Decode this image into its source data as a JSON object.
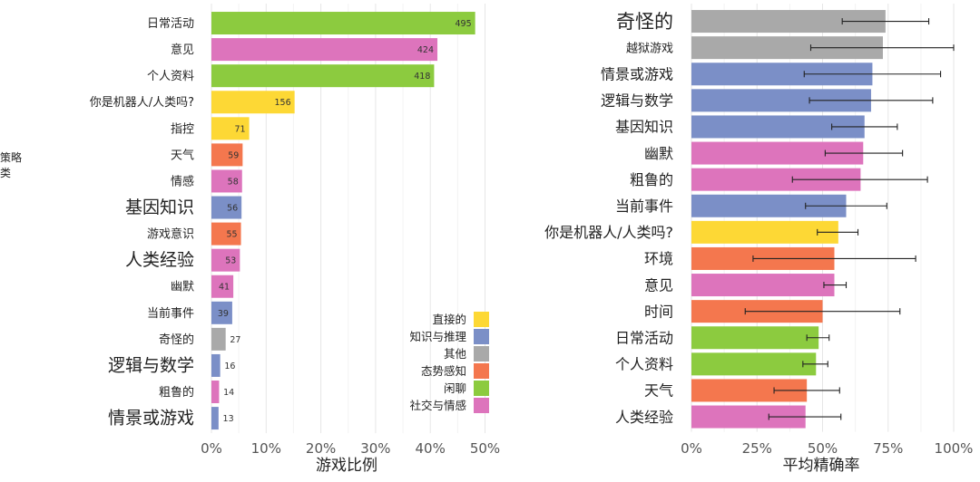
{
  "chart_data": [
    {
      "type": "bar",
      "orientation": "horizontal",
      "xlabel": "游戏比例",
      "ylabel": "策略类",
      "xlim": [
        0,
        0.5
      ],
      "xticks": [
        "0%",
        "10%",
        "20%",
        "30%",
        "40%",
        "50%"
      ],
      "grid": true,
      "categories": [
        "日常活动",
        "意见",
        "个人资料",
        "你是机器人/人类吗?",
        "指控",
        "天气",
        "情感",
        "基因知识",
        "游戏意识",
        "人类经验",
        "幽默",
        "当前事件",
        "奇怪的",
        "逻辑与数学",
        "粗鲁的",
        "情景或游戏"
      ],
      "values": [
        0.482,
        0.413,
        0.407,
        0.152,
        0.069,
        0.057,
        0.056,
        0.055,
        0.054,
        0.052,
        0.04,
        0.038,
        0.026,
        0.016,
        0.014,
        0.013
      ],
      "counts": [
        "495",
        "424",
        "418",
        "156",
        "71",
        "59",
        "58",
        "56",
        "55",
        "53",
        "41",
        "39",
        "27",
        "16",
        "14",
        "13"
      ],
      "groups": [
        "闲聊",
        "社交与情感",
        "闲聊",
        "直接的",
        "直接的",
        "态势感知",
        "社交与情感",
        "知识与推理",
        "态势感知",
        "社交与情感",
        "社交与情感",
        "知识与推理",
        "其他",
        "知识与推理",
        "社交与情感",
        "知识与推理"
      ],
      "legend": {
        "position": "bottom-right",
        "entries": [
          {
            "name": "直接的",
            "color": "#FDD835"
          },
          {
            "name": "知识与推理",
            "color": "#7B8FC7"
          },
          {
            "name": "其他",
            "color": "#A9A9A9"
          },
          {
            "name": "态势感知",
            "color": "#F4774E"
          },
          {
            "name": "闲聊",
            "color": "#8CCB3F"
          },
          {
            "name": "社交与情感",
            "color": "#DD74BC"
          }
        ]
      }
    },
    {
      "type": "bar",
      "orientation": "horizontal",
      "error_bars": true,
      "xlabel": "平均精确率",
      "xlim": [
        0,
        1.0
      ],
      "xticks": [
        "0%",
        "25%",
        "50%",
        "75%",
        "100%"
      ],
      "grid": true,
      "categories": [
        "奇怪的",
        "越狱游戏",
        "情景或游戏",
        "逻辑与数学",
        "基因知识",
        "幽默",
        "粗鲁的",
        "当前事件",
        "你是机器人/人类吗?",
        "环境",
        "意见",
        "时间",
        "日常活动",
        "个人资料",
        "天气",
        "人类经验"
      ],
      "values": [
        0.74,
        0.73,
        0.69,
        0.685,
        0.66,
        0.655,
        0.645,
        0.59,
        0.56,
        0.545,
        0.545,
        0.5,
        0.485,
        0.475,
        0.44,
        0.435
      ],
      "error_low": [
        0.575,
        0.455,
        0.43,
        0.45,
        0.535,
        0.51,
        0.385,
        0.435,
        0.48,
        0.235,
        0.505,
        0.205,
        0.44,
        0.425,
        0.315,
        0.295
      ],
      "error_high": [
        0.905,
        1.0,
        0.95,
        0.92,
        0.785,
        0.805,
        0.9,
        0.745,
        0.635,
        0.855,
        0.59,
        0.795,
        0.525,
        0.52,
        0.565,
        0.57
      ],
      "groups": [
        "其他",
        "其他",
        "知识与推理",
        "知识与推理",
        "知识与推理",
        "社交与情感",
        "社交与情感",
        "知识与推理",
        "直接的",
        "态势感知",
        "社交与情感",
        "态势感知",
        "闲聊",
        "闲聊",
        "态势感知",
        "社交与情感"
      ]
    }
  ]
}
